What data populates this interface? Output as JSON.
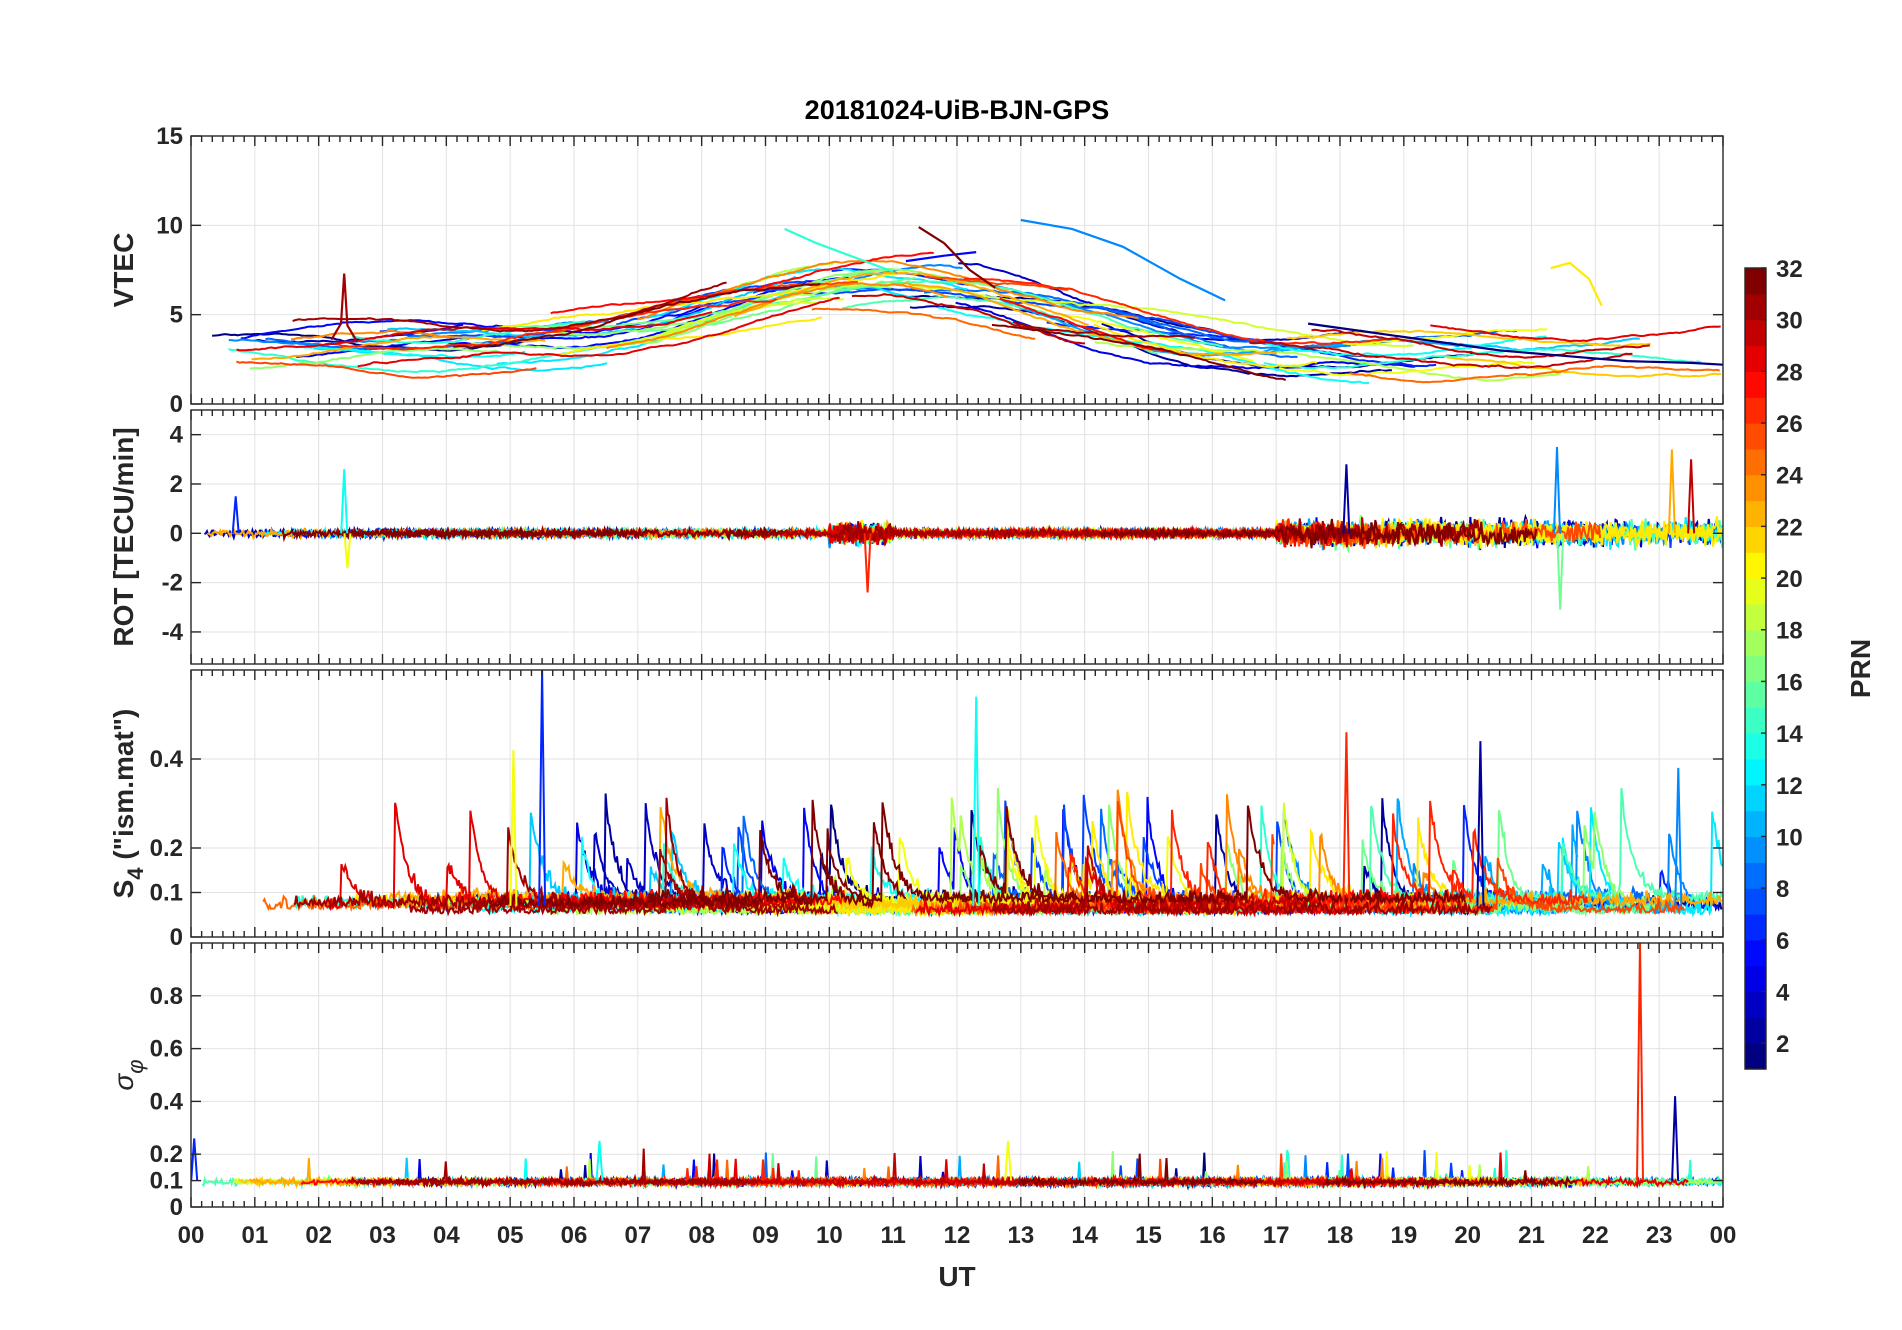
{
  "chart_data": {
    "type": "line",
    "title": "20181024-UiB-BJN-GPS",
    "xlabel": "UT",
    "x_tick_labels": [
      "00",
      "01",
      "02",
      "03",
      "04",
      "05",
      "06",
      "07",
      "08",
      "09",
      "10",
      "11",
      "12",
      "13",
      "14",
      "15",
      "16",
      "17",
      "18",
      "19",
      "20",
      "21",
      "22",
      "23",
      "00"
    ],
    "xlim": [
      0,
      24
    ],
    "colormap": "jet",
    "colorbar": {
      "label": "PRN",
      "range": [
        1,
        32
      ],
      "tick_labels": [
        "2",
        "4",
        "6",
        "8",
        "10",
        "12",
        "14",
        "16",
        "18",
        "20",
        "22",
        "24",
        "26",
        "28",
        "30",
        "32"
      ],
      "tick_values": [
        2,
        4,
        6,
        8,
        10,
        12,
        14,
        16,
        18,
        20,
        22,
        24,
        26,
        28,
        30,
        32
      ],
      "placement": "right"
    },
    "grid": true,
    "panels": [
      {
        "id": "vtec",
        "ylabel": "VTEC",
        "ylim": [
          0,
          15
        ],
        "y_tick_values": [
          0,
          5,
          10,
          15
        ],
        "y_tick_labels": [
          "0",
          "5",
          "10",
          "15"
        ],
        "series_profile": "smooth arcs per PRN, baseline ~2-4 rising to ~6-9 between 08 and 14 UT, spike at 02.4 UT to 7.3",
        "sample_series": [
          {
            "prn": 1,
            "x": [
              17.5,
              18.5,
              19.5,
              20.5,
              21.5,
              22.5,
              23.5,
              24
            ],
            "y": [
              4.5,
              4.0,
              3.5,
              3.0,
              2.7,
              2.4,
              2.3,
              2.2
            ]
          },
          {
            "prn": 5,
            "x": [
              11.2,
              11.8,
              12.3
            ],
            "y": [
              8.0,
              8.3,
              8.5
            ]
          },
          {
            "prn": 9,
            "x": [
              13.0,
              13.8,
              14.6,
              15.5,
              16.2
            ],
            "y": [
              10.3,
              9.8,
              8.8,
              7.0,
              5.8
            ]
          },
          {
            "prn": 14,
            "x": [
              9.3,
              9.8,
              10.4,
              11.0
            ],
            "y": [
              9.8,
              9.0,
              8.2,
              7.4
            ]
          },
          {
            "prn": 21,
            "x": [
              21.3,
              21.6,
              21.9,
              22.1
            ],
            "y": [
              7.6,
              7.9,
              7.0,
              5.5
            ]
          },
          {
            "prn": 31,
            "x": [
              2.2,
              2.35,
              2.4,
              2.45,
              2.6
            ],
            "y": [
              3.6,
              4.5,
              7.3,
              4.4,
              3.5
            ]
          },
          {
            "prn": 32,
            "x": [
              11.4,
              11.8,
              12.2,
              12.6
            ],
            "y": [
              9.9,
              9.0,
              7.5,
              6.5
            ]
          }
        ]
      },
      {
        "id": "rot",
        "ylabel": "ROT [TECU/min]",
        "ylim": [
          -5.3,
          5
        ],
        "y_tick_values": [
          -4,
          -2,
          0,
          2,
          4
        ],
        "y_tick_labels": [
          "-4",
          "-2",
          "0",
          "2",
          "4"
        ],
        "series_profile": "noise around 0 with bursts; peaks 2.6 at 02.4 UT, 3.5 at 21.4 UT, -3.1 at 21.4 UT, 3.4 at 23.2 UT",
        "sample_peaks": [
          {
            "x": 0.7,
            "y": 1.5
          },
          {
            "x": 2.4,
            "y": 2.6
          },
          {
            "x": 2.45,
            "y": -1.4
          },
          {
            "x": 10.6,
            "y": -2.4
          },
          {
            "x": 18.1,
            "y": 2.8
          },
          {
            "x": 21.4,
            "y": 3.5
          },
          {
            "x": 21.45,
            "y": -3.1
          },
          {
            "x": 23.2,
            "y": 3.4
          },
          {
            "x": 23.5,
            "y": 3.0
          }
        ]
      },
      {
        "id": "s4",
        "ylabel": "S4 (\"ism.mat\")",
        "ylabel_base": "S",
        "ylabel_sub": "4",
        "ylabel_rest": " (\"ism.mat\")",
        "ylim": [
          0,
          0.6
        ],
        "y_tick_values": [
          0,
          0.1,
          0.2,
          0.4
        ],
        "y_tick_labels": [
          "0",
          "0.1",
          "0.2",
          "0.4"
        ],
        "series_profile": "baseline ~0.05-0.1 with frequent spikes to 0.2-0.45",
        "sample_peaks": [
          {
            "x": 5.5,
            "y": 0.6
          },
          {
            "x": 12.3,
            "y": 0.54
          },
          {
            "x": 5.05,
            "y": 0.42
          },
          {
            "x": 18.1,
            "y": 0.46
          },
          {
            "x": 20.2,
            "y": 0.44
          },
          {
            "x": 23.3,
            "y": 0.38
          }
        ]
      },
      {
        "id": "sigma_phi",
        "ylabel": "σφ",
        "ylabel_base": "σ",
        "ylabel_sub": "φ",
        "ylim": [
          0,
          1
        ],
        "y_tick_values": [
          0,
          0.1,
          0.2,
          0.4,
          0.6,
          0.8
        ],
        "y_tick_labels": [
          "0",
          "0.1",
          "0.2",
          "0.4",
          "0.6",
          "0.8"
        ],
        "series_profile": "baseline ~0.1 with small spikes; large spike ~1.0 at 22.7 UT",
        "sample_peaks": [
          {
            "x": 0.05,
            "y": 0.26
          },
          {
            "x": 6.4,
            "y": 0.25
          },
          {
            "x": 12.8,
            "y": 0.25
          },
          {
            "x": 22.7,
            "y": 1.0
          },
          {
            "x": 23.25,
            "y": 0.42
          }
        ]
      }
    ]
  }
}
